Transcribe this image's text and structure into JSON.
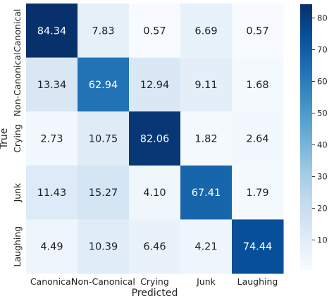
{
  "chart_data": {
    "type": "heatmap",
    "title": "",
    "xlabel": "Predicted",
    "ylabel": "True",
    "x_categories": [
      "Canonical",
      "Non-Canonical",
      "Crying",
      "Junk",
      "Laughing"
    ],
    "y_categories": [
      "Canonical",
      "Non-Canonical",
      "Crying",
      "Junk",
      "Laughing"
    ],
    "values": [
      [
        84.34,
        7.83,
        0.57,
        6.69,
        0.57
      ],
      [
        13.34,
        62.94,
        12.94,
        9.11,
        1.68
      ],
      [
        2.73,
        10.75,
        82.06,
        1.82,
        2.64
      ],
      [
        11.43,
        15.27,
        4.1,
        67.41,
        1.79
      ],
      [
        4.49,
        10.39,
        6.46,
        4.21,
        74.44
      ]
    ],
    "value_labels": [
      [
        "84.34",
        "7.83",
        "0.57",
        "6.69",
        "0.57"
      ],
      [
        "13.34",
        "62.94",
        "12.94",
        "9.11",
        "1.68"
      ],
      [
        "2.73",
        "10.75",
        "82.06",
        "1.82",
        "2.64"
      ],
      [
        "11.43",
        "15.27",
        "4.10",
        "67.41",
        "1.79"
      ],
      [
        "4.49",
        "10.39",
        "6.46",
        "4.21",
        "74.44"
      ]
    ],
    "colormap": "Blues",
    "colorbar": {
      "range": [
        0.57,
        84.34
      ],
      "ticks": [
        10,
        20,
        30,
        40,
        50,
        60,
        70,
        80
      ]
    },
    "grid": false
  }
}
